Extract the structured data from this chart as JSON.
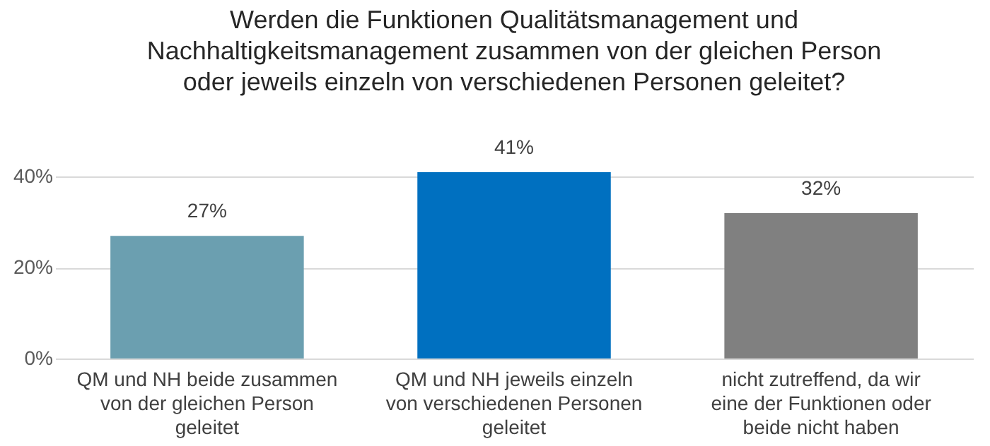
{
  "chart_data": {
    "type": "bar",
    "title": "Werden die Funktionen Qualitätsmanagement und Nachhaltigkeitsmanagement zusammen von der gleichen Person oder jeweils einzeln von verschiedenen Personen geleitet?",
    "categories": [
      "QM und NH beide zusammen von der gleichen Person geleitet",
      "QM und NH jeweils einzeln von verschiedenen Personen geleitet",
      "nicht zutreffend, da wir eine der Funktionen oder beide nicht haben"
    ],
    "values": [
      27,
      41,
      32
    ],
    "colors": [
      "#6b9fb0",
      "#0070c0",
      "#808080"
    ],
    "value_labels": [
      "27%",
      "41%",
      "32%"
    ],
    "ylim": [
      0,
      41
    ],
    "yticks": [
      {
        "value": 0,
        "label": "0%"
      },
      {
        "value": 20,
        "label": "20%"
      },
      {
        "value": 40,
        "label": "40%"
      }
    ],
    "grid": "y"
  }
}
